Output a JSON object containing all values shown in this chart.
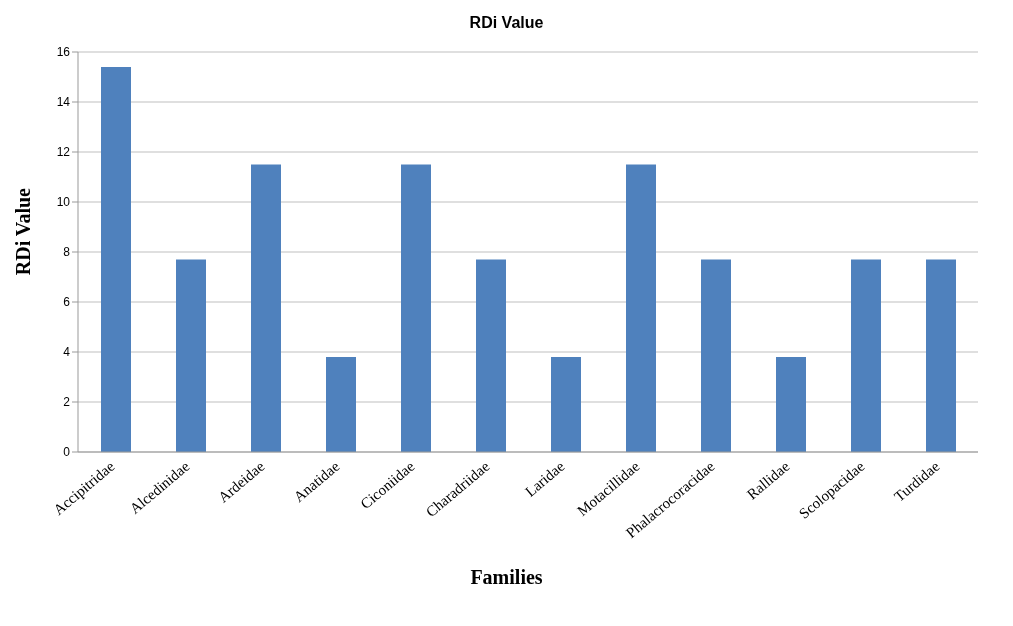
{
  "chart_data": {
    "type": "bar",
    "title": "RDi Value",
    "xlabel": "Families",
    "ylabel": "RDi Value",
    "categories": [
      "Accipitridae",
      "Alcedinidae",
      "Ardeidae",
      "Anatidae",
      "Ciconiidae",
      "Charadriidae",
      "Laridae",
      "Motacillidae",
      "Phalacrocoracidae",
      "Rallidae",
      "Scolopacidae",
      "Turdidae"
    ],
    "values": [
      15.4,
      7.7,
      11.5,
      3.8,
      11.5,
      7.7,
      3.8,
      11.5,
      7.7,
      3.8,
      7.7,
      7.7
    ],
    "color": "#4f81bd",
    "ylim": [
      0,
      16
    ],
    "yticks": [
      0,
      2,
      4,
      6,
      8,
      10,
      12,
      14,
      16
    ],
    "grid": "y"
  }
}
